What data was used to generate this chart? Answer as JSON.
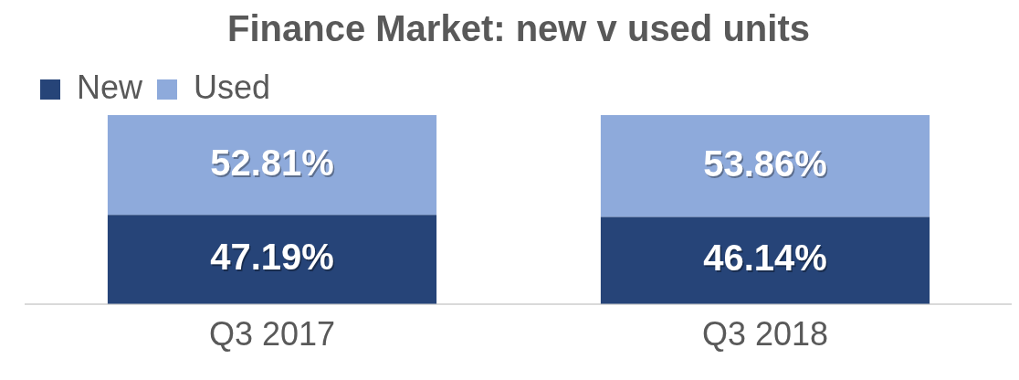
{
  "chart_data": {
    "type": "bar",
    "title": "Finance Market: new v used units",
    "categories": [
      "Q3 2017",
      "Q3 2018"
    ],
    "stacked": true,
    "legend": "top left",
    "grid": false,
    "series": [
      {
        "name": "New",
        "color": "#264478",
        "values": [
          47.19,
          46.14
        ],
        "value_labels": [
          "47.19%",
          "46.14%"
        ]
      },
      {
        "name": "Used",
        "color": "#8eaadb",
        "values": [
          52.81,
          53.86
        ],
        "value_labels": [
          "52.81%",
          "53.86%"
        ]
      }
    ]
  }
}
